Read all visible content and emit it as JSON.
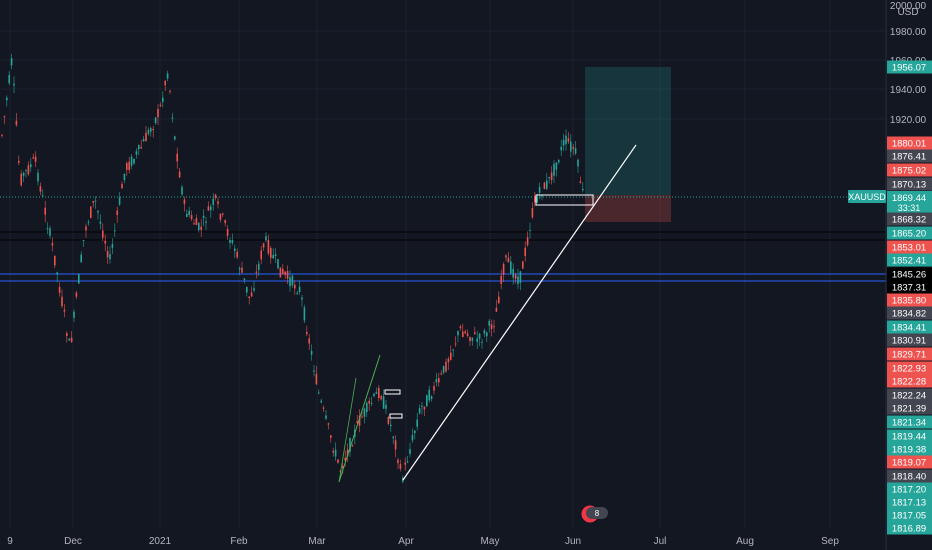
{
  "symbol": "XAUUSD",
  "currency": "USD",
  "countdown": "33:31",
  "alert_badge": "8",
  "colors": {
    "background": "#131722",
    "grid": "#1e2230",
    "axis_text": "#b2b5be",
    "up": "#26a69a",
    "down": "#ef5350",
    "trendline": "#ffffff",
    "channel_line": "#4caf50",
    "blue_line": "#2962ff",
    "black_line": "#000000",
    "profit_zone": "rgba(38,166,154,0.22)",
    "loss_zone": "rgba(239,83,80,0.25)",
    "current_price_line": "#26a69a"
  },
  "x_axis": {
    "labels": [
      "9",
      "Dec",
      "2021",
      "Feb",
      "Mar",
      "Apr",
      "May",
      "Jun",
      "Jul",
      "Aug",
      "Sep"
    ]
  },
  "y_axis": {
    "unit": "USD",
    "ticks": [
      "2000.00",
      "1980.00",
      "1960.00",
      "1940.00",
      "1920.00"
    ]
  },
  "price_labels": [
    {
      "text": "1956.07",
      "price": 1956.07,
      "color": "#26a69a"
    },
    {
      "text": "1880.01",
      "price": 1880.01,
      "color": "#ef5350"
    },
    {
      "text": "1876.41",
      "price": 1876.41,
      "color": "#434651"
    },
    {
      "text": "1875.02",
      "price": 1875.02,
      "color": "#ef5350"
    },
    {
      "text": "1870.13",
      "price": 1870.13,
      "color": "#434651"
    },
    {
      "text": "1869.44",
      "price": 1869.44,
      "color": "#26a69a"
    },
    {
      "text": "1868.32",
      "price": 1868.32,
      "color": "#434651"
    },
    {
      "text": "1865.20",
      "price": 1865.2,
      "color": "#26a69a"
    },
    {
      "text": "1853.01",
      "price": 1853.01,
      "color": "#ef5350"
    },
    {
      "text": "1852.41",
      "price": 1852.41,
      "color": "#26a69a"
    },
    {
      "text": "1845.26",
      "price": 1845.26,
      "color": "#000000"
    },
    {
      "text": "1837.31",
      "price": 1837.31,
      "color": "#000000"
    },
    {
      "text": "1835.80",
      "price": 1835.8,
      "color": "#ef5350"
    },
    {
      "text": "1834.82",
      "price": 1834.82,
      "color": "#434651"
    },
    {
      "text": "1834.41",
      "price": 1834.41,
      "color": "#26a69a"
    },
    {
      "text": "1830.91",
      "price": 1830.91,
      "color": "#434651"
    },
    {
      "text": "1829.71",
      "price": 1829.71,
      "color": "#ef5350"
    },
    {
      "text": "1822.93",
      "price": 1822.93,
      "color": "#ef5350"
    },
    {
      "text": "1822.28",
      "price": 1822.28,
      "color": "#ef5350"
    },
    {
      "text": "1822.24",
      "price": 1822.24,
      "color": "#434651"
    },
    {
      "text": "1821.39",
      "price": 1821.39,
      "color": "#434651"
    },
    {
      "text": "1821.34",
      "price": 1821.34,
      "color": "#26a69a"
    },
    {
      "text": "1819.44",
      "price": 1819.44,
      "color": "#26a69a"
    },
    {
      "text": "1819.38",
      "price": 1819.38,
      "color": "#26a69a"
    },
    {
      "text": "1819.07",
      "price": 1819.07,
      "color": "#ef5350"
    },
    {
      "text": "1818.40",
      "price": 1818.4,
      "color": "#434651"
    },
    {
      "text": "1817.20",
      "price": 1817.2,
      "color": "#26a69a"
    },
    {
      "text": "1817.13",
      "price": 1817.13,
      "color": "#26a69a"
    },
    {
      "text": "1817.05",
      "price": 1817.05,
      "color": "#26a69a"
    },
    {
      "text": "1816.89",
      "price": 1816.89,
      "color": "#26a69a"
    }
  ],
  "chart_data": {
    "type": "candlestick",
    "symbol": "XAUUSD",
    "timeframe_span": [
      "Nov 2020",
      "Jun 2021"
    ],
    "xlim": [
      "Nov 2020",
      "Sep 2021"
    ],
    "ylim": [
      1660,
      2000
    ],
    "grid": true,
    "path_dates": [
      "Nov 2020",
      "early Dec 2020",
      "Jan 2021 high",
      "mid Jan 2021",
      "Feb 2021",
      "early Mar 2021",
      "Mar 2021",
      "end Mar 2021",
      "Apr 2021",
      "May 2021",
      "late May 2021",
      "Jun 2021"
    ],
    "path_prices": [
      1965,
      1780,
      1955,
      1840,
      1870,
      1760,
      1700,
      1680,
      1760,
      1830,
      1910,
      1870
    ],
    "current_price": 1869.44,
    "horizontal_lines": [
      {
        "price": 1865.2,
        "color": "black"
      },
      {
        "price": 1845.26,
        "color": "blue"
      },
      {
        "price": 1837.31,
        "color": "blue"
      }
    ],
    "position": {
      "type": "long",
      "entry": 1869.44,
      "target": 1956.07,
      "stop": 1845.26
    },
    "trendlines": [
      "uptrend from end-March 2021 low through June 2021"
    ]
  }
}
